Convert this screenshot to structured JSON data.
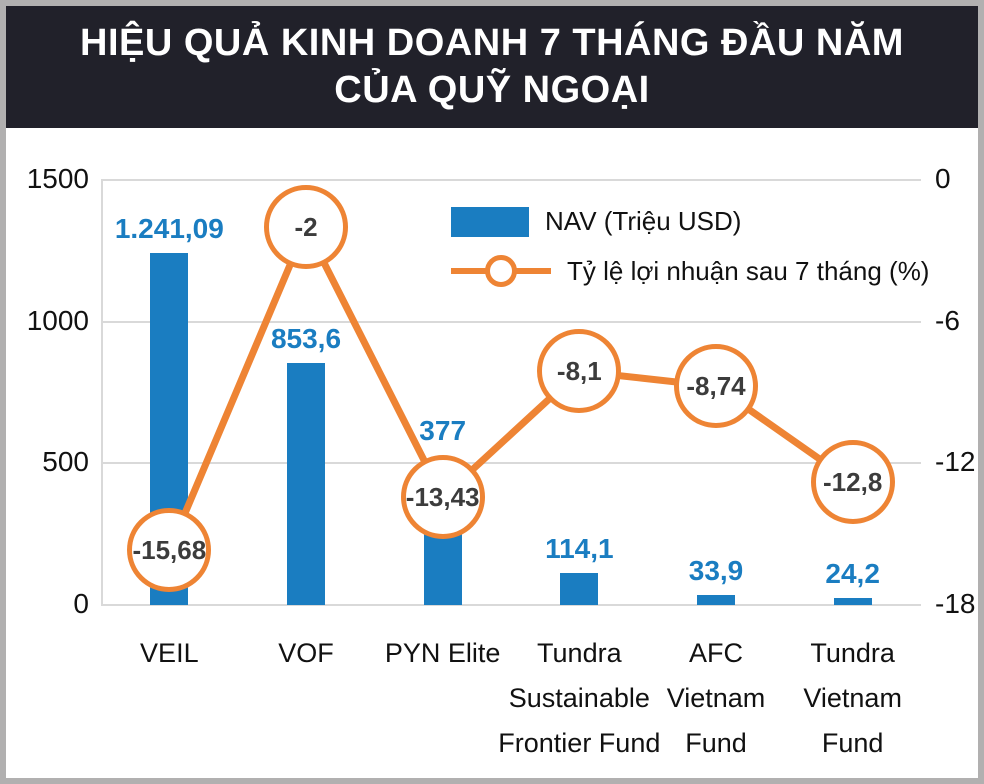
{
  "frame": {
    "border_color": "#b1b0b0"
  },
  "header": {
    "line1": "HIỆU QUẢ KINH DOANH 7 THÁNG ĐẦU NĂM",
    "line2": "CỦA QUỸ NGOẠI",
    "bg": "#21212a",
    "text_color": "#ffffff"
  },
  "chart_data": {
    "type": "bar+line",
    "title": "HIỆU QUẢ KINH DOANH 7 THÁNG ĐẦU NĂM CỦA QUỸ NGOẠI",
    "categories": [
      "VEIL",
      "VOF",
      "PYN Elite",
      "Tundra Sustainable Frontier Fund",
      "AFC Vietnam Fund",
      "Tundra Vietnam Fund"
    ],
    "category_lines": [
      [
        "VEIL"
      ],
      [
        "VOF"
      ],
      [
        "PYN Elite"
      ],
      [
        "Tundra",
        "Sustainable",
        "Frontier Fund"
      ],
      [
        "AFC",
        "Vietnam",
        "Fund"
      ],
      [
        "Tundra",
        "Vietnam",
        "Fund"
      ]
    ],
    "series": [
      {
        "name": "NAV (Triệu USD)",
        "type": "bar",
        "axis": "left",
        "color": "#1a7dc1",
        "values": [
          1241.09,
          853.6,
          377,
          114.1,
          33.9,
          24.2
        ],
        "labels": [
          "1.241,09",
          "853,6",
          "377",
          "114,1",
          "33,9",
          "24,2"
        ]
      },
      {
        "name": "Tỷ lệ lợi nhuận sau 7 tháng (%)",
        "type": "line",
        "axis": "right",
        "color": "#ee8434",
        "values": [
          -15.68,
          -2,
          -13.43,
          -8.1,
          -8.74,
          -12.8
        ],
        "labels": [
          "-15,68",
          "-2",
          "-13,43",
          "-8,1",
          "-8,74",
          "-12,8"
        ]
      }
    ],
    "left_axis": {
      "ticks": [
        "1500",
        "1000",
        "500",
        "0"
      ],
      "min": 0,
      "max": 1500
    },
    "right_axis": {
      "ticks": [
        "0",
        "-6",
        "-12",
        "-18"
      ],
      "min": -18,
      "max": 0
    },
    "grid": true,
    "legend_position": "top-right",
    "gridline_color": "#d9d9d9"
  }
}
